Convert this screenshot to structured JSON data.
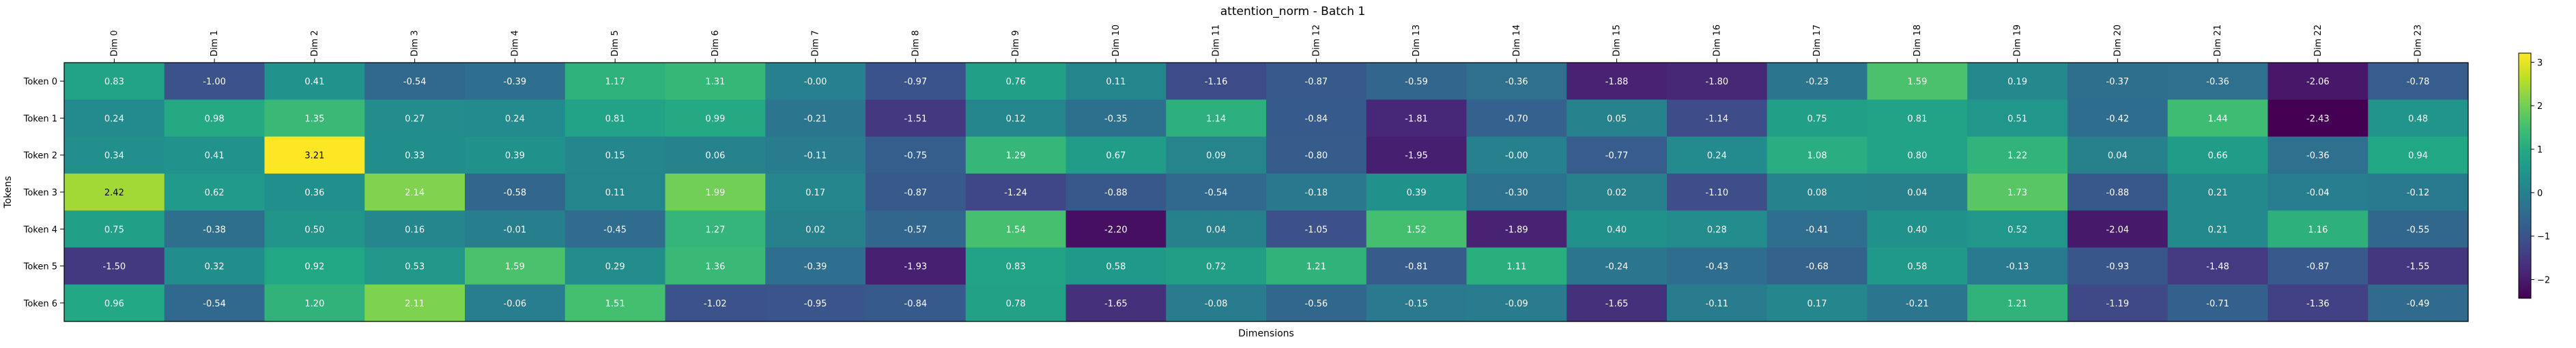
{
  "chart_data": {
    "type": "heatmap",
    "title": "attention_norm - Batch 1",
    "xlabel": "Dimensions",
    "ylabel": "Tokens",
    "columns": [
      "Dim 0",
      "Dim 1",
      "Dim 2",
      "Dim 3",
      "Dim 4",
      "Dim 5",
      "Dim 6",
      "Dim 7",
      "Dim 8",
      "Dim 9",
      "Dim 10",
      "Dim 11",
      "Dim 12",
      "Dim 13",
      "Dim 14",
      "Dim 15",
      "Dim 16",
      "Dim 17",
      "Dim 18",
      "Dim 19",
      "Dim 20",
      "Dim 21",
      "Dim 22",
      "Dim 23"
    ],
    "rows": [
      "Token 0",
      "Token 1",
      "Token 2",
      "Token 3",
      "Token 4",
      "Token 5",
      "Token 6"
    ],
    "values": [
      [
        0.83,
        -1.0,
        0.41,
        -0.54,
        -0.39,
        1.17,
        1.31,
        -0.0,
        -0.97,
        0.76,
        0.11,
        -1.16,
        -0.87,
        -0.59,
        -0.36,
        -1.88,
        -1.8,
        -0.23,
        1.59,
        0.19,
        -0.37,
        -0.36,
        -2.06,
        -0.78
      ],
      [
        0.24,
        0.98,
        1.35,
        0.27,
        0.24,
        0.81,
        0.99,
        -0.21,
        -1.51,
        0.12,
        -0.35,
        1.14,
        -0.84,
        -1.81,
        -0.7,
        0.05,
        -1.14,
        0.75,
        0.81,
        0.51,
        -0.42,
        1.44,
        -2.43,
        0.48
      ],
      [
        0.34,
        0.41,
        3.21,
        0.33,
        0.39,
        0.15,
        0.06,
        -0.11,
        -0.75,
        1.29,
        0.67,
        0.09,
        -0.8,
        -1.95,
        -0.0,
        -0.77,
        0.24,
        1.08,
        0.8,
        1.22,
        0.04,
        0.66,
        -0.36,
        0.94
      ],
      [
        2.42,
        0.62,
        0.36,
        2.14,
        -0.58,
        0.11,
        1.99,
        0.17,
        -0.87,
        -1.24,
        -0.88,
        -0.54,
        -0.18,
        0.39,
        -0.3,
        0.02,
        -1.1,
        0.08,
        0.04,
        1.73,
        -0.88,
        0.21,
        -0.04,
        -0.12
      ],
      [
        0.75,
        -0.38,
        0.5,
        0.16,
        -0.01,
        -0.45,
        1.27,
        0.02,
        -0.57,
        1.54,
        -2.2,
        0.04,
        -1.05,
        1.52,
        -1.89,
        0.4,
        0.28,
        -0.41,
        0.4,
        0.52,
        -2.04,
        0.21,
        1.16,
        -0.55
      ],
      [
        -1.5,
        0.32,
        0.92,
        0.53,
        1.59,
        0.29,
        1.36,
        -0.39,
        -1.93,
        0.83,
        0.58,
        0.72,
        1.21,
        -0.81,
        1.11,
        -0.24,
        -0.43,
        -0.68,
        0.58,
        -0.13,
        -0.93,
        -1.48,
        -0.87,
        -1.55
      ],
      [
        0.96,
        -0.54,
        1.2,
        2.11,
        -0.06,
        1.51,
        -1.02,
        -0.95,
        -0.84,
        0.78,
        -1.65,
        -0.08,
        -0.56,
        -0.15,
        -0.09,
        -1.65,
        -0.11,
        0.17,
        -0.21,
        1.21,
        -1.19,
        -0.71,
        -1.36,
        -0.49
      ]
    ],
    "value_labels": [
      [
        "0.83",
        "-1.00",
        "0.41",
        "-0.54",
        "-0.39",
        "1.17",
        "1.31",
        "-0.00",
        "-0.97",
        "0.76",
        "0.11",
        "-1.16",
        "-0.87",
        "-0.59",
        "-0.36",
        "-1.88",
        "-1.80",
        "-0.23",
        "1.59",
        "0.19",
        "-0.37",
        "-0.36",
        "-2.06",
        "-0.78"
      ],
      [
        "0.24",
        "0.98",
        "1.35",
        "0.27",
        "0.24",
        "0.81",
        "0.99",
        "-0.21",
        "-1.51",
        "0.12",
        "-0.35",
        "1.14",
        "-0.84",
        "-1.81",
        "-0.70",
        "0.05",
        "-1.14",
        "0.75",
        "0.81",
        "0.51",
        "-0.42",
        "1.44",
        "-2.43",
        "0.48"
      ],
      [
        "0.34",
        "0.41",
        "3.21",
        "0.33",
        "0.39",
        "0.15",
        "0.06",
        "-0.11",
        "-0.75",
        "1.29",
        "0.67",
        "0.09",
        "-0.80",
        "-1.95",
        "-0.00",
        "-0.77",
        "0.24",
        "1.08",
        "0.80",
        "1.22",
        "0.04",
        "0.66",
        "-0.36",
        "0.94"
      ],
      [
        "2.42",
        "0.62",
        "0.36",
        "2.14",
        "-0.58",
        "0.11",
        "1.99",
        "0.17",
        "-0.87",
        "-1.24",
        "-0.88",
        "-0.54",
        "-0.18",
        "0.39",
        "-0.30",
        "0.02",
        "-1.10",
        "0.08",
        "0.04",
        "1.73",
        "-0.88",
        "0.21",
        "-0.04",
        "-0.12"
      ],
      [
        "0.75",
        "-0.38",
        "0.50",
        "0.16",
        "-0.01",
        "-0.45",
        "1.27",
        "0.02",
        "-0.57",
        "1.54",
        "-2.20",
        "0.04",
        "-1.05",
        "1.52",
        "-1.89",
        "0.40",
        "0.28",
        "-0.41",
        "0.40",
        "0.52",
        "-2.04",
        "0.21",
        "1.16",
        "-0.55"
      ],
      [
        "-1.50",
        "0.32",
        "0.92",
        "0.53",
        "1.59",
        "0.29",
        "1.36",
        "-0.39",
        "-1.93",
        "0.83",
        "0.58",
        "0.72",
        "1.21",
        "-0.81",
        "1.11",
        "-0.24",
        "-0.43",
        "-0.68",
        "0.58",
        "-0.13",
        "-0.93",
        "-1.48",
        "-0.87",
        "-1.55"
      ],
      [
        "0.96",
        "-0.54",
        "1.20",
        "2.11",
        "-0.06",
        "1.51",
        "-1.02",
        "-0.95",
        "-0.84",
        "0.78",
        "-1.65",
        "-0.08",
        "-0.56",
        "-0.15",
        "-0.09",
        "-1.65",
        "-0.11",
        "0.17",
        "-0.21",
        "1.21",
        "-1.19",
        "-0.71",
        "-1.36",
        "-0.49"
      ]
    ],
    "colormap": "viridis",
    "vmin": -2.43,
    "vmax": 3.21,
    "colorbar_ticks": [
      -2,
      -1,
      0,
      1,
      2,
      3
    ],
    "colorbar_tick_labels": [
      "−2",
      "−1",
      "0",
      "1",
      "2",
      "3"
    ],
    "text_color_light": "#ffffff",
    "text_color_dark": "#000000"
  }
}
